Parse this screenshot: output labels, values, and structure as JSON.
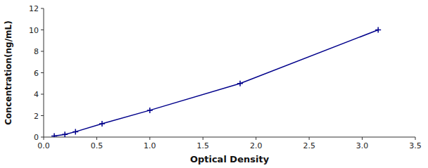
{
  "chart_data": {
    "type": "line",
    "xlabel": "Optical Density",
    "ylabel": "Concentration(ng/mL)",
    "x": [
      0.1,
      0.2,
      0.3,
      0.55,
      1.0,
      1.85,
      3.15
    ],
    "values": [
      0.1,
      0.25,
      0.5,
      1.25,
      2.5,
      5.0,
      10.0
    ],
    "color": "#00008B",
    "marker": "plus",
    "xlim": [
      0.0,
      3.5
    ],
    "ylim": [
      0,
      12
    ],
    "xticks": [
      {
        "value": 0.0,
        "label": "0.0"
      },
      0.5,
      {
        "value": 1.0,
        "label": "1.0"
      },
      1.5,
      {
        "value": 2.0,
        "label": "2.0"
      },
      2.5,
      {
        "value": 3.0,
        "label": "3.0"
      },
      3.5
    ],
    "yticks": [
      0,
      2,
      4,
      6,
      8,
      10,
      12
    ]
  }
}
